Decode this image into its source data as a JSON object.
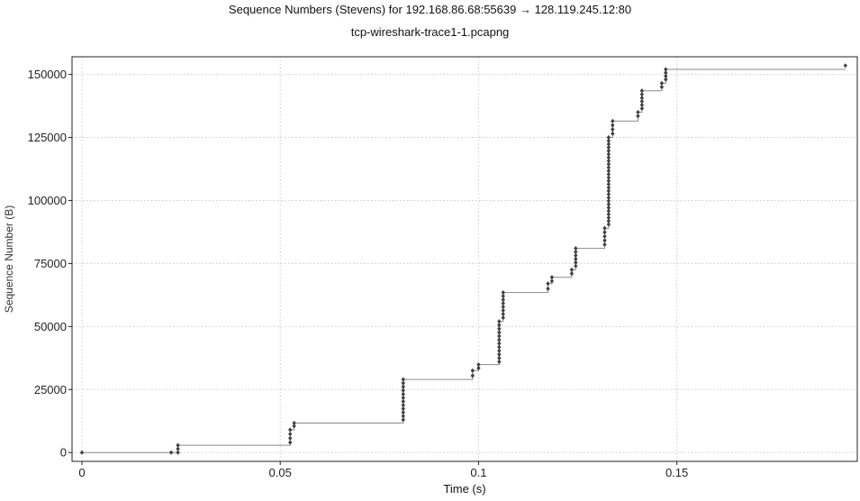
{
  "chart_data": {
    "type": "scatter",
    "title": "Sequence Numbers (Stevens) for 192.168.86.68:55639 → 128.119.245.12:80",
    "subtitle": "tcp-wireshark-trace1-1.pcapng",
    "xlabel": "Time (s)",
    "ylabel": "Sequence Number (B)",
    "xlim": [
      -0.0025,
      0.1955
    ],
    "ylim": [
      -3500,
      157000
    ],
    "grid": true,
    "x_ticks": [
      0,
      0.05,
      0.1,
      0.15
    ],
    "x_tick_labels": [
      "0",
      "0.05",
      "0.1",
      "0.15"
    ],
    "y_ticks": [
      0,
      25000,
      50000,
      75000,
      100000,
      125000,
      150000
    ],
    "y_tick_labels": [
      "0",
      "25000",
      "50000",
      "75000",
      "100000",
      "125000",
      "150000"
    ],
    "colors": {
      "marker": "#404040",
      "step_line": "#8a8a8a",
      "grid": "#c8c8c8"
    },
    "series": [
      {
        "bursts": [
          {
            "x": 0.0,
            "y_start": 0,
            "y_end": 0,
            "count": 1
          },
          {
            "x": 0.0225,
            "y_start": 0,
            "y_end": 0,
            "count": 1
          },
          {
            "x": 0.0242,
            "y_start": 0,
            "y_end": 2900,
            "count": 3
          },
          {
            "x": 0.0525,
            "y_start": 4000,
            "y_end": 9000,
            "count": 4
          },
          {
            "x": 0.0535,
            "y_start": 10500,
            "y_end": 11700,
            "count": 2
          },
          {
            "x": 0.081,
            "y_start": 13000,
            "y_end": 29000,
            "count": 12
          },
          {
            "x": 0.0985,
            "y_start": 30500,
            "y_end": 32500,
            "count": 2
          },
          {
            "x": 0.1,
            "y_start": 33500,
            "y_end": 34900,
            "count": 2
          },
          {
            "x": 0.1052,
            "y_start": 36000,
            "y_end": 52000,
            "count": 12
          },
          {
            "x": 0.1062,
            "y_start": 53500,
            "y_end": 63500,
            "count": 8
          },
          {
            "x": 0.1175,
            "y_start": 65000,
            "y_end": 67000,
            "count": 2
          },
          {
            "x": 0.1185,
            "y_start": 68000,
            "y_end": 69500,
            "count": 2
          },
          {
            "x": 0.1235,
            "y_start": 71000,
            "y_end": 72500,
            "count": 2
          },
          {
            "x": 0.1245,
            "y_start": 74000,
            "y_end": 81000,
            "count": 6
          },
          {
            "x": 0.1318,
            "y_start": 82500,
            "y_end": 89000,
            "count": 5
          },
          {
            "x": 0.1328,
            "y_start": 90500,
            "y_end": 125000,
            "count": 27
          },
          {
            "x": 0.1338,
            "y_start": 126500,
            "y_end": 131500,
            "count": 4
          },
          {
            "x": 0.1402,
            "y_start": 133500,
            "y_end": 135000,
            "count": 2
          },
          {
            "x": 0.1412,
            "y_start": 136500,
            "y_end": 143500,
            "count": 6
          },
          {
            "x": 0.1462,
            "y_start": 145000,
            "y_end": 146500,
            "count": 2
          },
          {
            "x": 0.1472,
            "y_start": 148000,
            "y_end": 152000,
            "count": 4
          },
          {
            "x": 0.1925,
            "y_start": 153500,
            "y_end": 153500,
            "count": 1
          }
        ],
        "step_line": [
          [
            0.0,
            0
          ],
          [
            0.0242,
            0
          ],
          [
            0.0242,
            2900
          ],
          [
            0.0525,
            2900
          ],
          [
            0.0525,
            9000
          ],
          [
            0.0535,
            9000
          ],
          [
            0.0535,
            11700
          ],
          [
            0.081,
            11700
          ],
          [
            0.081,
            29000
          ],
          [
            0.0985,
            29000
          ],
          [
            0.0985,
            32500
          ],
          [
            0.1,
            32500
          ],
          [
            0.1,
            34900
          ],
          [
            0.1052,
            34900
          ],
          [
            0.1052,
            52000
          ],
          [
            0.1062,
            52000
          ],
          [
            0.1062,
            63500
          ],
          [
            0.1175,
            63500
          ],
          [
            0.1175,
            67000
          ],
          [
            0.1185,
            67000
          ],
          [
            0.1185,
            69500
          ],
          [
            0.1235,
            69500
          ],
          [
            0.1235,
            72500
          ],
          [
            0.1245,
            72500
          ],
          [
            0.1245,
            81000
          ],
          [
            0.1318,
            81000
          ],
          [
            0.1318,
            89000
          ],
          [
            0.1328,
            89000
          ],
          [
            0.1328,
            125000
          ],
          [
            0.1338,
            125000
          ],
          [
            0.1338,
            131500
          ],
          [
            0.1402,
            131500
          ],
          [
            0.1402,
            135000
          ],
          [
            0.1412,
            135000
          ],
          [
            0.1412,
            143500
          ],
          [
            0.1462,
            143500
          ],
          [
            0.1462,
            146500
          ],
          [
            0.1472,
            146500
          ],
          [
            0.1472,
            152000
          ],
          [
            0.1925,
            152000
          ]
        ]
      }
    ]
  }
}
